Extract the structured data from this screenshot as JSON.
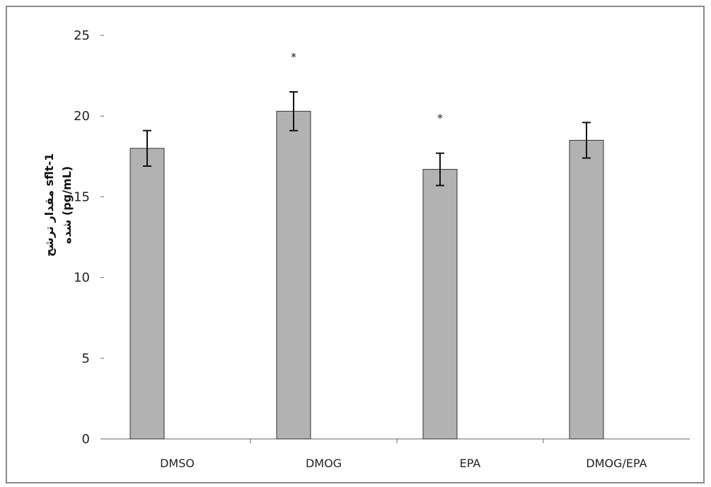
{
  "chart_data": {
    "type": "bar",
    "categories": [
      "DMSO",
      "DMOG",
      "EPA",
      "DMOG/EPA"
    ],
    "values": [
      18.0,
      20.3,
      16.7,
      18.5
    ],
    "error": [
      1.1,
      1.2,
      1.0,
      1.1
    ],
    "significance": [
      "",
      "*",
      "*",
      ""
    ],
    "ylim": [
      0,
      25
    ],
    "yticks": [
      0,
      5,
      10,
      15,
      20,
      25
    ],
    "ylabel_line1": "مقدار ترشح sflt-1",
    "ylabel_line2": "شده (pg/mL)",
    "xlabel": "",
    "title": "",
    "grid": false,
    "colors": {
      "bar": "#b2b2b2",
      "bar_edge": "#333333",
      "axis": "#666666",
      "error": "#111111"
    }
  }
}
